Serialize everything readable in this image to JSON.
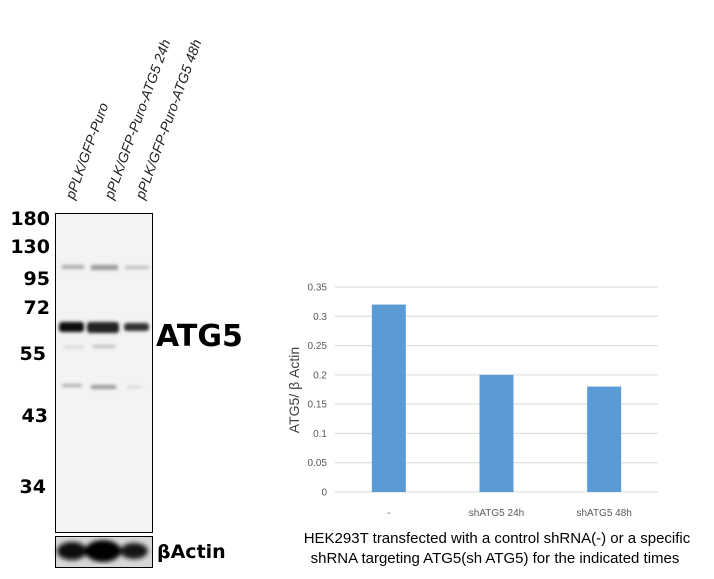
{
  "blot": {
    "lanes": [
      "pPLK/GFP-Puro",
      "pPLK/GFP-Puro-ATG5 24h",
      "pPLK/GFP-Puro-ATG5 48h"
    ],
    "markers": [
      "180",
      "130",
      "95",
      "72",
      "55",
      "43",
      "34"
    ],
    "target_label": "ATG5",
    "loading_label": "βActin"
  },
  "chart_data": {
    "type": "bar",
    "categories": [
      "-",
      "shATG5 24h",
      "shATG5 48h"
    ],
    "values": [
      0.32,
      0.2,
      0.18
    ],
    "ylabel": "ATG5/ β Actin",
    "xlabel": "",
    "ylim": [
      0,
      0.35
    ],
    "yticks": [
      "0",
      "0.05",
      "0.1",
      "0.15",
      "0.2",
      "0.25",
      "0.3",
      "0.35"
    ],
    "grid": true,
    "bar_color": "#5b9bd5",
    "caption": [
      "HEK293T transfected with a control shRNA(-) or a specific",
      "shRNA targeting ATG5(sh ATG5) for the indicated times"
    ]
  }
}
